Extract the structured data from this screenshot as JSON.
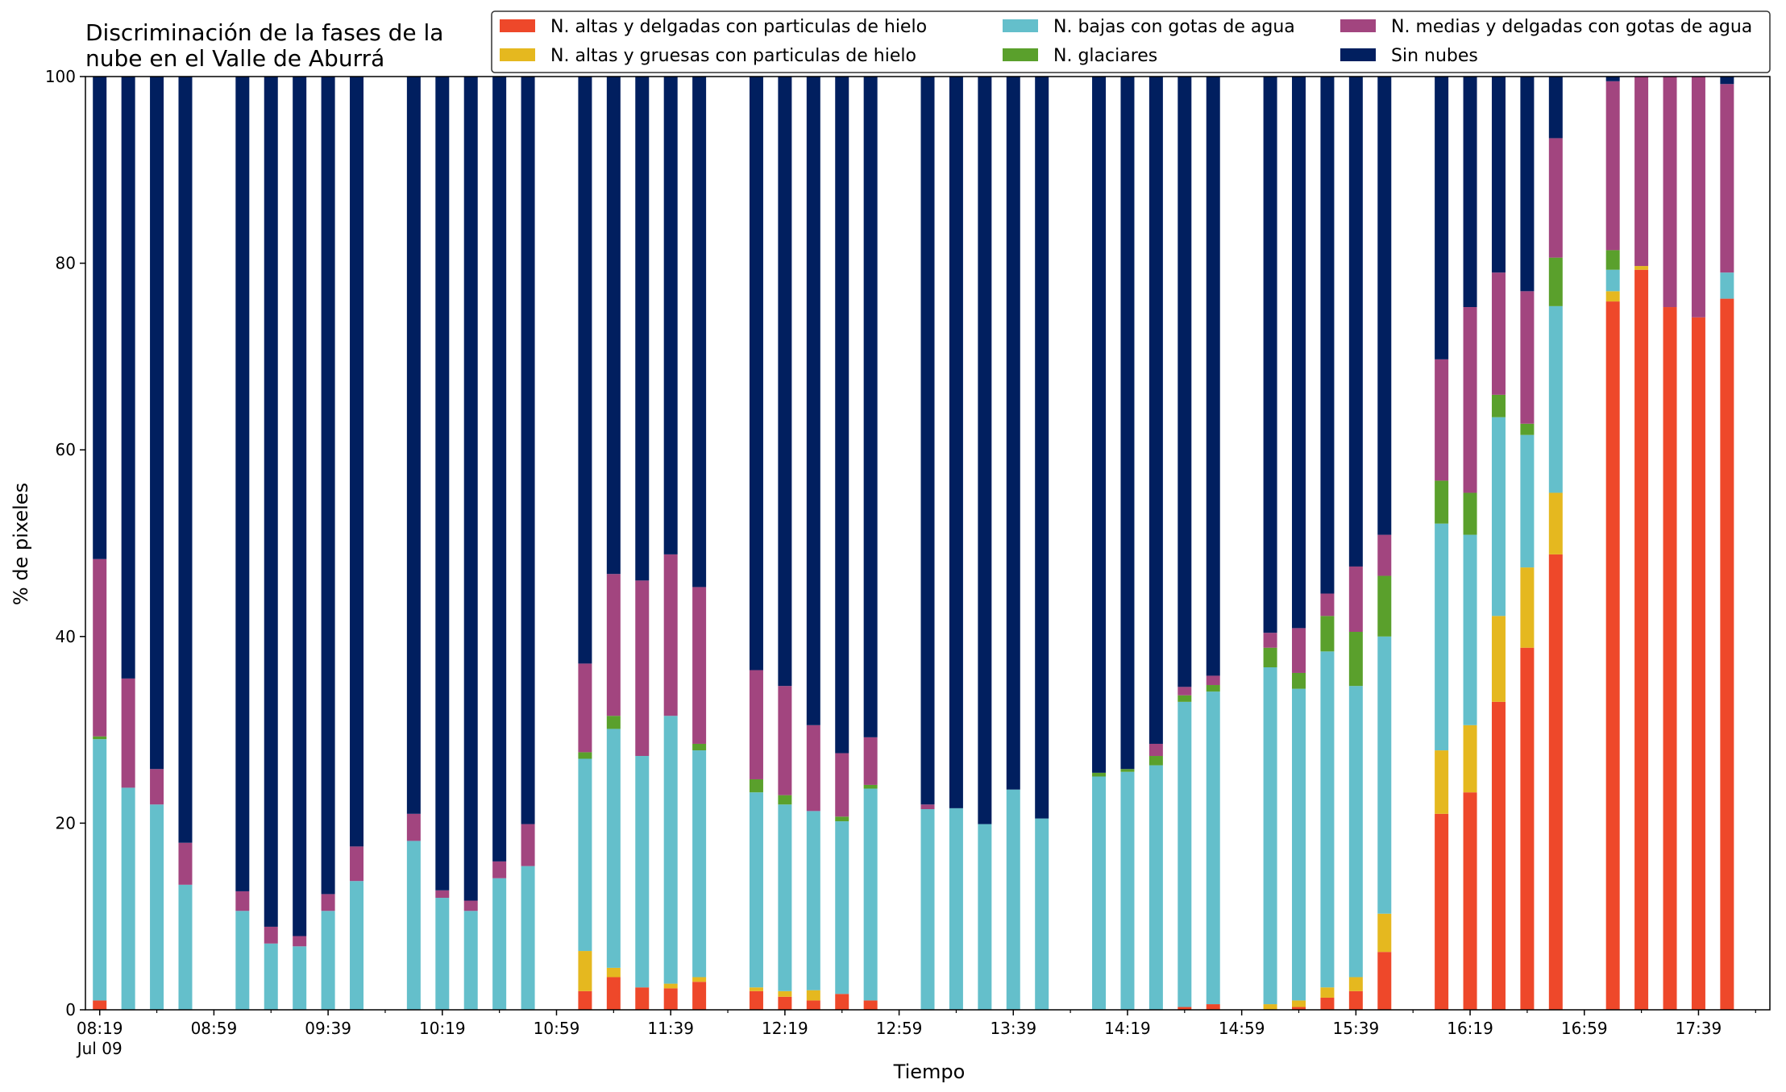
{
  "chart_data": {
    "type": "bar",
    "stacked": true,
    "title_lines": [
      "Discriminación de la fases de la",
      "nube en el Valle de Aburrá"
    ],
    "xlabel": "Tiempo",
    "ylabel": "% de pixeles",
    "ylim": [
      0,
      100
    ],
    "yticks": [
      0,
      20,
      40,
      60,
      80,
      100
    ],
    "x_time_range": [
      "08:14",
      "18:04"
    ],
    "x_date_label": "Jul 09",
    "major_ticks": [
      "08:19",
      "08:59",
      "09:39",
      "10:19",
      "10:59",
      "11:39",
      "12:19",
      "12:59",
      "13:39",
      "14:19",
      "14:59",
      "15:39",
      "16:19",
      "16:59",
      "17:39"
    ],
    "minor_ticks": [
      "08:39",
      "09:19",
      "09:59",
      "10:39",
      "11:19",
      "11:59",
      "12:39",
      "13:19",
      "13:59",
      "14:39",
      "15:19",
      "15:59",
      "16:39",
      "17:19",
      "17:59"
    ],
    "grid": false,
    "legend_position": "top-right",
    "legend": [
      {
        "name": "N. altas y delgadas con particulas de hielo",
        "color": "#ee482a"
      },
      {
        "name": "N. altas y gruesas con particulas de hielo",
        "color": "#e5b81f"
      },
      {
        "name": "N. bajas con gotas de agua",
        "color": "#64bfcb"
      },
      {
        "name": "N. glaciares",
        "color": "#5aa02c"
      },
      {
        "name": "N. medias y delgadas con gotas de agua",
        "color": "#a2457f"
      },
      {
        "name": "Sin nubes",
        "color": "#011f5f"
      }
    ],
    "bars": [
      {
        "time": "08:19",
        "values": [
          1.0,
          0.0,
          28.0,
          0.3,
          19.0,
          51.7
        ]
      },
      {
        "time": "08:29",
        "values": [
          0.0,
          0.0,
          23.8,
          0.0,
          11.7,
          64.5
        ]
      },
      {
        "time": "08:39",
        "values": [
          0.0,
          0.0,
          22.0,
          0.0,
          3.8,
          74.2
        ]
      },
      {
        "time": "08:49",
        "values": [
          0.0,
          0.0,
          13.4,
          0.0,
          4.5,
          82.1
        ]
      },
      {
        "time": "09:09",
        "values": [
          0.0,
          0.0,
          10.6,
          0.0,
          2.1,
          87.3
        ]
      },
      {
        "time": "09:19",
        "values": [
          0.0,
          0.0,
          7.1,
          0.0,
          1.8,
          91.1
        ]
      },
      {
        "time": "09:29",
        "values": [
          0.0,
          0.0,
          6.8,
          0.0,
          1.1,
          92.1
        ]
      },
      {
        "time": "09:39",
        "values": [
          0.0,
          0.0,
          10.6,
          0.0,
          1.8,
          87.6
        ]
      },
      {
        "time": "09:49",
        "values": [
          0.0,
          0.0,
          13.8,
          0.0,
          3.7,
          82.5
        ]
      },
      {
        "time": "10:09",
        "values": [
          0.0,
          0.0,
          18.1,
          0.0,
          2.9,
          79.0
        ]
      },
      {
        "time": "10:19",
        "values": [
          0.0,
          0.0,
          12.0,
          0.0,
          0.8,
          87.2
        ]
      },
      {
        "time": "10:29",
        "values": [
          0.0,
          0.0,
          10.6,
          0.0,
          1.1,
          88.3
        ]
      },
      {
        "time": "10:39",
        "values": [
          0.0,
          0.0,
          14.1,
          0.0,
          1.8,
          84.1
        ]
      },
      {
        "time": "10:49",
        "values": [
          0.0,
          0.0,
          15.4,
          0.0,
          4.5,
          80.1
        ]
      },
      {
        "time": "11:09",
        "values": [
          2.0,
          4.3,
          20.6,
          0.7,
          9.5,
          62.9
        ]
      },
      {
        "time": "11:19",
        "values": [
          3.5,
          1.0,
          25.6,
          1.4,
          15.2,
          53.3
        ]
      },
      {
        "time": "11:29",
        "values": [
          2.4,
          0.0,
          24.8,
          0.0,
          18.8,
          54.0
        ]
      },
      {
        "time": "11:39",
        "values": [
          2.3,
          0.5,
          28.7,
          0.0,
          17.3,
          51.2
        ]
      },
      {
        "time": "11:49",
        "values": [
          3.0,
          0.5,
          24.3,
          0.7,
          16.8,
          54.7
        ]
      },
      {
        "time": "12:09",
        "values": [
          2.0,
          0.4,
          20.9,
          1.4,
          11.7,
          63.6
        ]
      },
      {
        "time": "12:19",
        "values": [
          1.4,
          0.6,
          20.0,
          1.0,
          11.7,
          65.3
        ]
      },
      {
        "time": "12:29",
        "values": [
          1.0,
          1.1,
          19.2,
          0.0,
          9.2,
          69.5
        ]
      },
      {
        "time": "12:39",
        "values": [
          1.7,
          0.0,
          18.5,
          0.5,
          6.8,
          72.5
        ]
      },
      {
        "time": "12:49",
        "values": [
          1.0,
          0.0,
          22.7,
          0.4,
          5.1,
          70.8
        ]
      },
      {
        "time": "13:09",
        "values": [
          0.0,
          0.0,
          21.5,
          0.0,
          0.5,
          78.0
        ]
      },
      {
        "time": "13:19",
        "values": [
          0.0,
          0.0,
          21.6,
          0.0,
          0.0,
          78.4
        ]
      },
      {
        "time": "13:29",
        "values": [
          0.0,
          0.0,
          19.9,
          0.0,
          0.0,
          80.1
        ]
      },
      {
        "time": "13:39",
        "values": [
          0.0,
          0.0,
          23.6,
          0.0,
          0.0,
          76.4
        ]
      },
      {
        "time": "13:49",
        "values": [
          0.0,
          0.0,
          20.5,
          0.0,
          0.0,
          79.5
        ]
      },
      {
        "time": "14:09",
        "values": [
          0.0,
          0.0,
          25.0,
          0.4,
          0.0,
          74.6
        ]
      },
      {
        "time": "14:19",
        "values": [
          0.0,
          0.0,
          25.5,
          0.3,
          0.0,
          74.2
        ]
      },
      {
        "time": "14:29",
        "values": [
          0.0,
          0.0,
          26.2,
          1.0,
          1.3,
          71.5
        ]
      },
      {
        "time": "14:39",
        "values": [
          0.3,
          0.0,
          32.7,
          0.7,
          0.9,
          65.4
        ]
      },
      {
        "time": "14:49",
        "values": [
          0.6,
          0.0,
          33.5,
          0.7,
          1.0,
          64.2
        ]
      },
      {
        "time": "15:09",
        "values": [
          0.0,
          0.6,
          36.1,
          2.1,
          1.6,
          59.6
        ]
      },
      {
        "time": "15:19",
        "values": [
          0.3,
          0.7,
          33.4,
          1.7,
          4.8,
          59.1
        ]
      },
      {
        "time": "15:29",
        "values": [
          1.3,
          1.1,
          36.0,
          3.8,
          2.4,
          55.4
        ]
      },
      {
        "time": "15:39",
        "values": [
          2.0,
          1.5,
          31.2,
          5.8,
          7.0,
          52.5
        ]
      },
      {
        "time": "15:49",
        "values": [
          6.2,
          4.1,
          29.7,
          6.5,
          4.4,
          49.1
        ]
      },
      {
        "time": "16:09",
        "values": [
          21.0,
          6.8,
          24.3,
          4.6,
          13.0,
          30.3
        ]
      },
      {
        "time": "16:19",
        "values": [
          23.3,
          7.2,
          20.4,
          4.5,
          19.9,
          24.7
        ]
      },
      {
        "time": "16:29",
        "values": [
          33.0,
          9.2,
          21.3,
          2.4,
          13.1,
          21.0
        ]
      },
      {
        "time": "16:39",
        "values": [
          38.8,
          8.6,
          14.2,
          1.2,
          14.2,
          23.0
        ]
      },
      {
        "time": "16:49",
        "values": [
          48.8,
          6.6,
          20.0,
          5.2,
          12.8,
          6.6
        ]
      },
      {
        "time": "17:09",
        "values": [
          75.9,
          1.1,
          2.3,
          2.1,
          18.1,
          0.5
        ]
      },
      {
        "time": "17:19",
        "values": [
          79.3,
          0.4,
          0.0,
          0.0,
          20.3,
          0.0
        ]
      },
      {
        "time": "17:29",
        "values": [
          75.3,
          0.0,
          0.0,
          0.0,
          24.7,
          0.0
        ]
      },
      {
        "time": "17:39",
        "values": [
          74.2,
          0.0,
          0.0,
          0.0,
          25.8,
          0.0
        ]
      },
      {
        "time": "17:49",
        "values": [
          76.2,
          0.0,
          2.8,
          0.0,
          20.2,
          0.8
        ]
      }
    ]
  }
}
